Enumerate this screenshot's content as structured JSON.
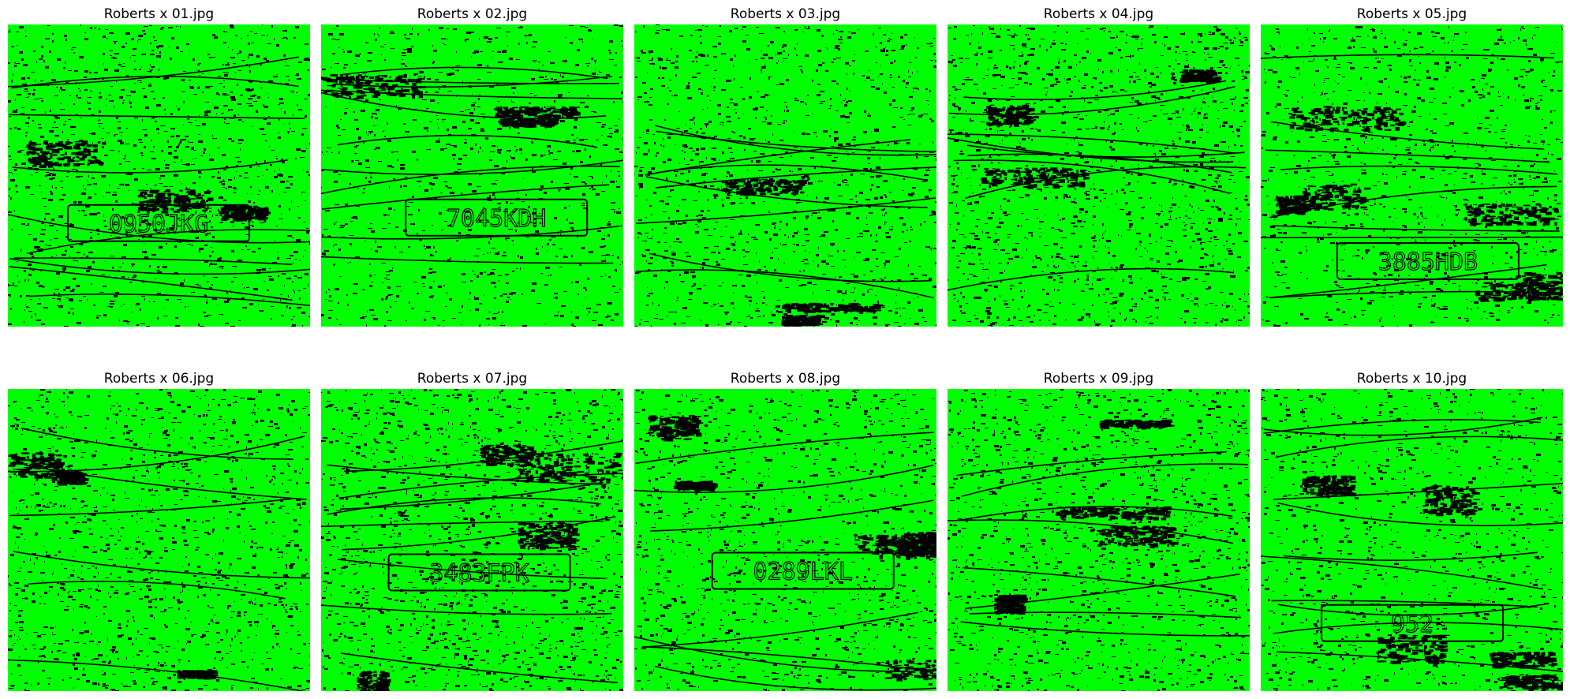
{
  "figure": {
    "background_color": "#ffffff",
    "edge_color": "#00ff00",
    "background_edge_color": "#000000",
    "panels": [
      {
        "title": "Roberts x 01.jpg",
        "plate_text": "0950JKG"
      },
      {
        "title": "Roberts x 02.jpg",
        "plate_text": "7045KDH"
      },
      {
        "title": "Roberts x 03.jpg",
        "plate_text": ""
      },
      {
        "title": "Roberts x 04.jpg",
        "plate_text": ""
      },
      {
        "title": "Roberts x 05.jpg",
        "plate_text": "3885HDB"
      },
      {
        "title": "Roberts x 06.jpg",
        "plate_text": ""
      },
      {
        "title": "Roberts x 07.jpg",
        "plate_text": "3483FPK"
      },
      {
        "title": "Roberts x 08.jpg",
        "plate_text": "0289LKL"
      },
      {
        "title": "Roberts x 09.jpg",
        "plate_text": ""
      },
      {
        "title": "Roberts x 10.jpg",
        "plate_text": "952"
      }
    ]
  }
}
